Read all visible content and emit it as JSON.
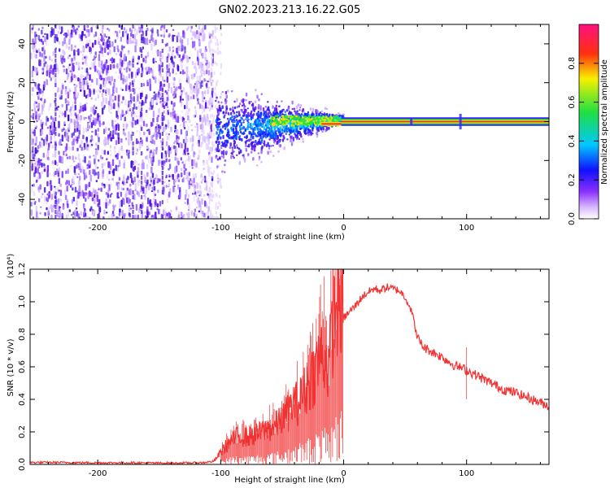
{
  "title": "GN02.2023.213.16.22.G05",
  "colors": {
    "trace": "#f03232",
    "center_line": "#e83030",
    "band_green": "#2fe02f",
    "band_yellow": "#ffd800",
    "noise_purple": "#6a1cf0"
  },
  "chart_data": [
    {
      "type": "heatmap",
      "title": "",
      "xlabel": "Height of straight line (km)",
      "ylabel": "Frequency (Hz)",
      "xlim": [
        -255,
        167
      ],
      "ylim": [
        -50,
        50
      ],
      "xticks": [
        -200,
        -100,
        0,
        100
      ],
      "xtick_labels": [
        "-200",
        "-100",
        "0",
        "100"
      ],
      "yticks": [
        -40,
        -20,
        0,
        20,
        40
      ],
      "ytick_labels": [
        "-40",
        "-20",
        "0",
        "20",
        "40"
      ],
      "colorbar": {
        "label": "Normalized spectral amplitude",
        "range": [
          0,
          1
        ],
        "ticks": [
          0.0,
          0.2,
          0.4,
          0.6,
          0.8
        ],
        "tick_labels": [
          "0.0",
          "0.2",
          "0.4",
          "0.6",
          "0.8"
        ],
        "colormap": "rainbow (white-purple-blue-cyan-green-yellow-red-magenta)"
      },
      "regions": [
        {
          "name": "broadband noise",
          "x_range": [
            -255,
            -105
          ],
          "freq_range": [
            -50,
            50
          ],
          "amplitude": "low (~0.05-0.2)"
        },
        {
          "name": "scatter transition",
          "x_range": [
            -105,
            0
          ],
          "freq_range": [
            -20,
            10
          ],
          "amplitude": "mid (~0.2-0.5)"
        },
        {
          "name": "carrier line",
          "x_range": [
            0,
            167
          ],
          "freq": 0,
          "amplitude": "high (~0.9)"
        }
      ],
      "grid": false
    },
    {
      "type": "line",
      "title": "",
      "xlabel": "Height of straight line (km)",
      "ylabel": "SNR (10 * v/v)",
      "scale_label": "(x10⁴)",
      "xlim": [
        -255,
        167
      ],
      "ylim": [
        0,
        1.2
      ],
      "xticks": [
        -200,
        -100,
        0,
        100
      ],
      "xtick_labels": [
        "-200",
        "-100",
        "0",
        "100"
      ],
      "yticks": [
        0.0,
        0.2,
        0.4,
        0.6,
        0.8,
        1.0,
        1.2
      ],
      "ytick_labels": [
        "0.0",
        "0.2",
        "0.4",
        "0.6",
        "0.8",
        "1.0",
        "1.2"
      ],
      "series": [
        {
          "x": [
            -255,
            -230,
            -200,
            -170,
            -140,
            -115,
            -105,
            -98,
            -92,
            -85,
            -78,
            -70,
            -62,
            -55,
            -48,
            -42,
            -36,
            -30,
            -25,
            -20,
            -16,
            -12,
            -9,
            -6,
            -3,
            0,
            5,
            10,
            15,
            20,
            25,
            30,
            35,
            40,
            45,
            50,
            55,
            60,
            65,
            70,
            80,
            90,
            100,
            110,
            120,
            130,
            140,
            150,
            160,
            167
          ],
          "y": [
            0.012,
            0.012,
            0.01,
            0.01,
            0.008,
            0.01,
            0.02,
            0.08,
            0.12,
            0.15,
            0.14,
            0.16,
            0.18,
            0.2,
            0.25,
            0.3,
            0.33,
            0.4,
            0.47,
            0.55,
            0.58,
            0.5,
            0.72,
            0.82,
            0.86,
            0.9,
            0.94,
            0.98,
            1.03,
            1.06,
            1.08,
            1.07,
            1.09,
            1.08,
            1.07,
            1.03,
            0.95,
            0.78,
            0.72,
            0.7,
            0.66,
            0.61,
            0.58,
            0.54,
            0.5,
            0.46,
            0.44,
            0.41,
            0.38,
            0.36
          ]
        }
      ],
      "grid": false
    }
  ]
}
